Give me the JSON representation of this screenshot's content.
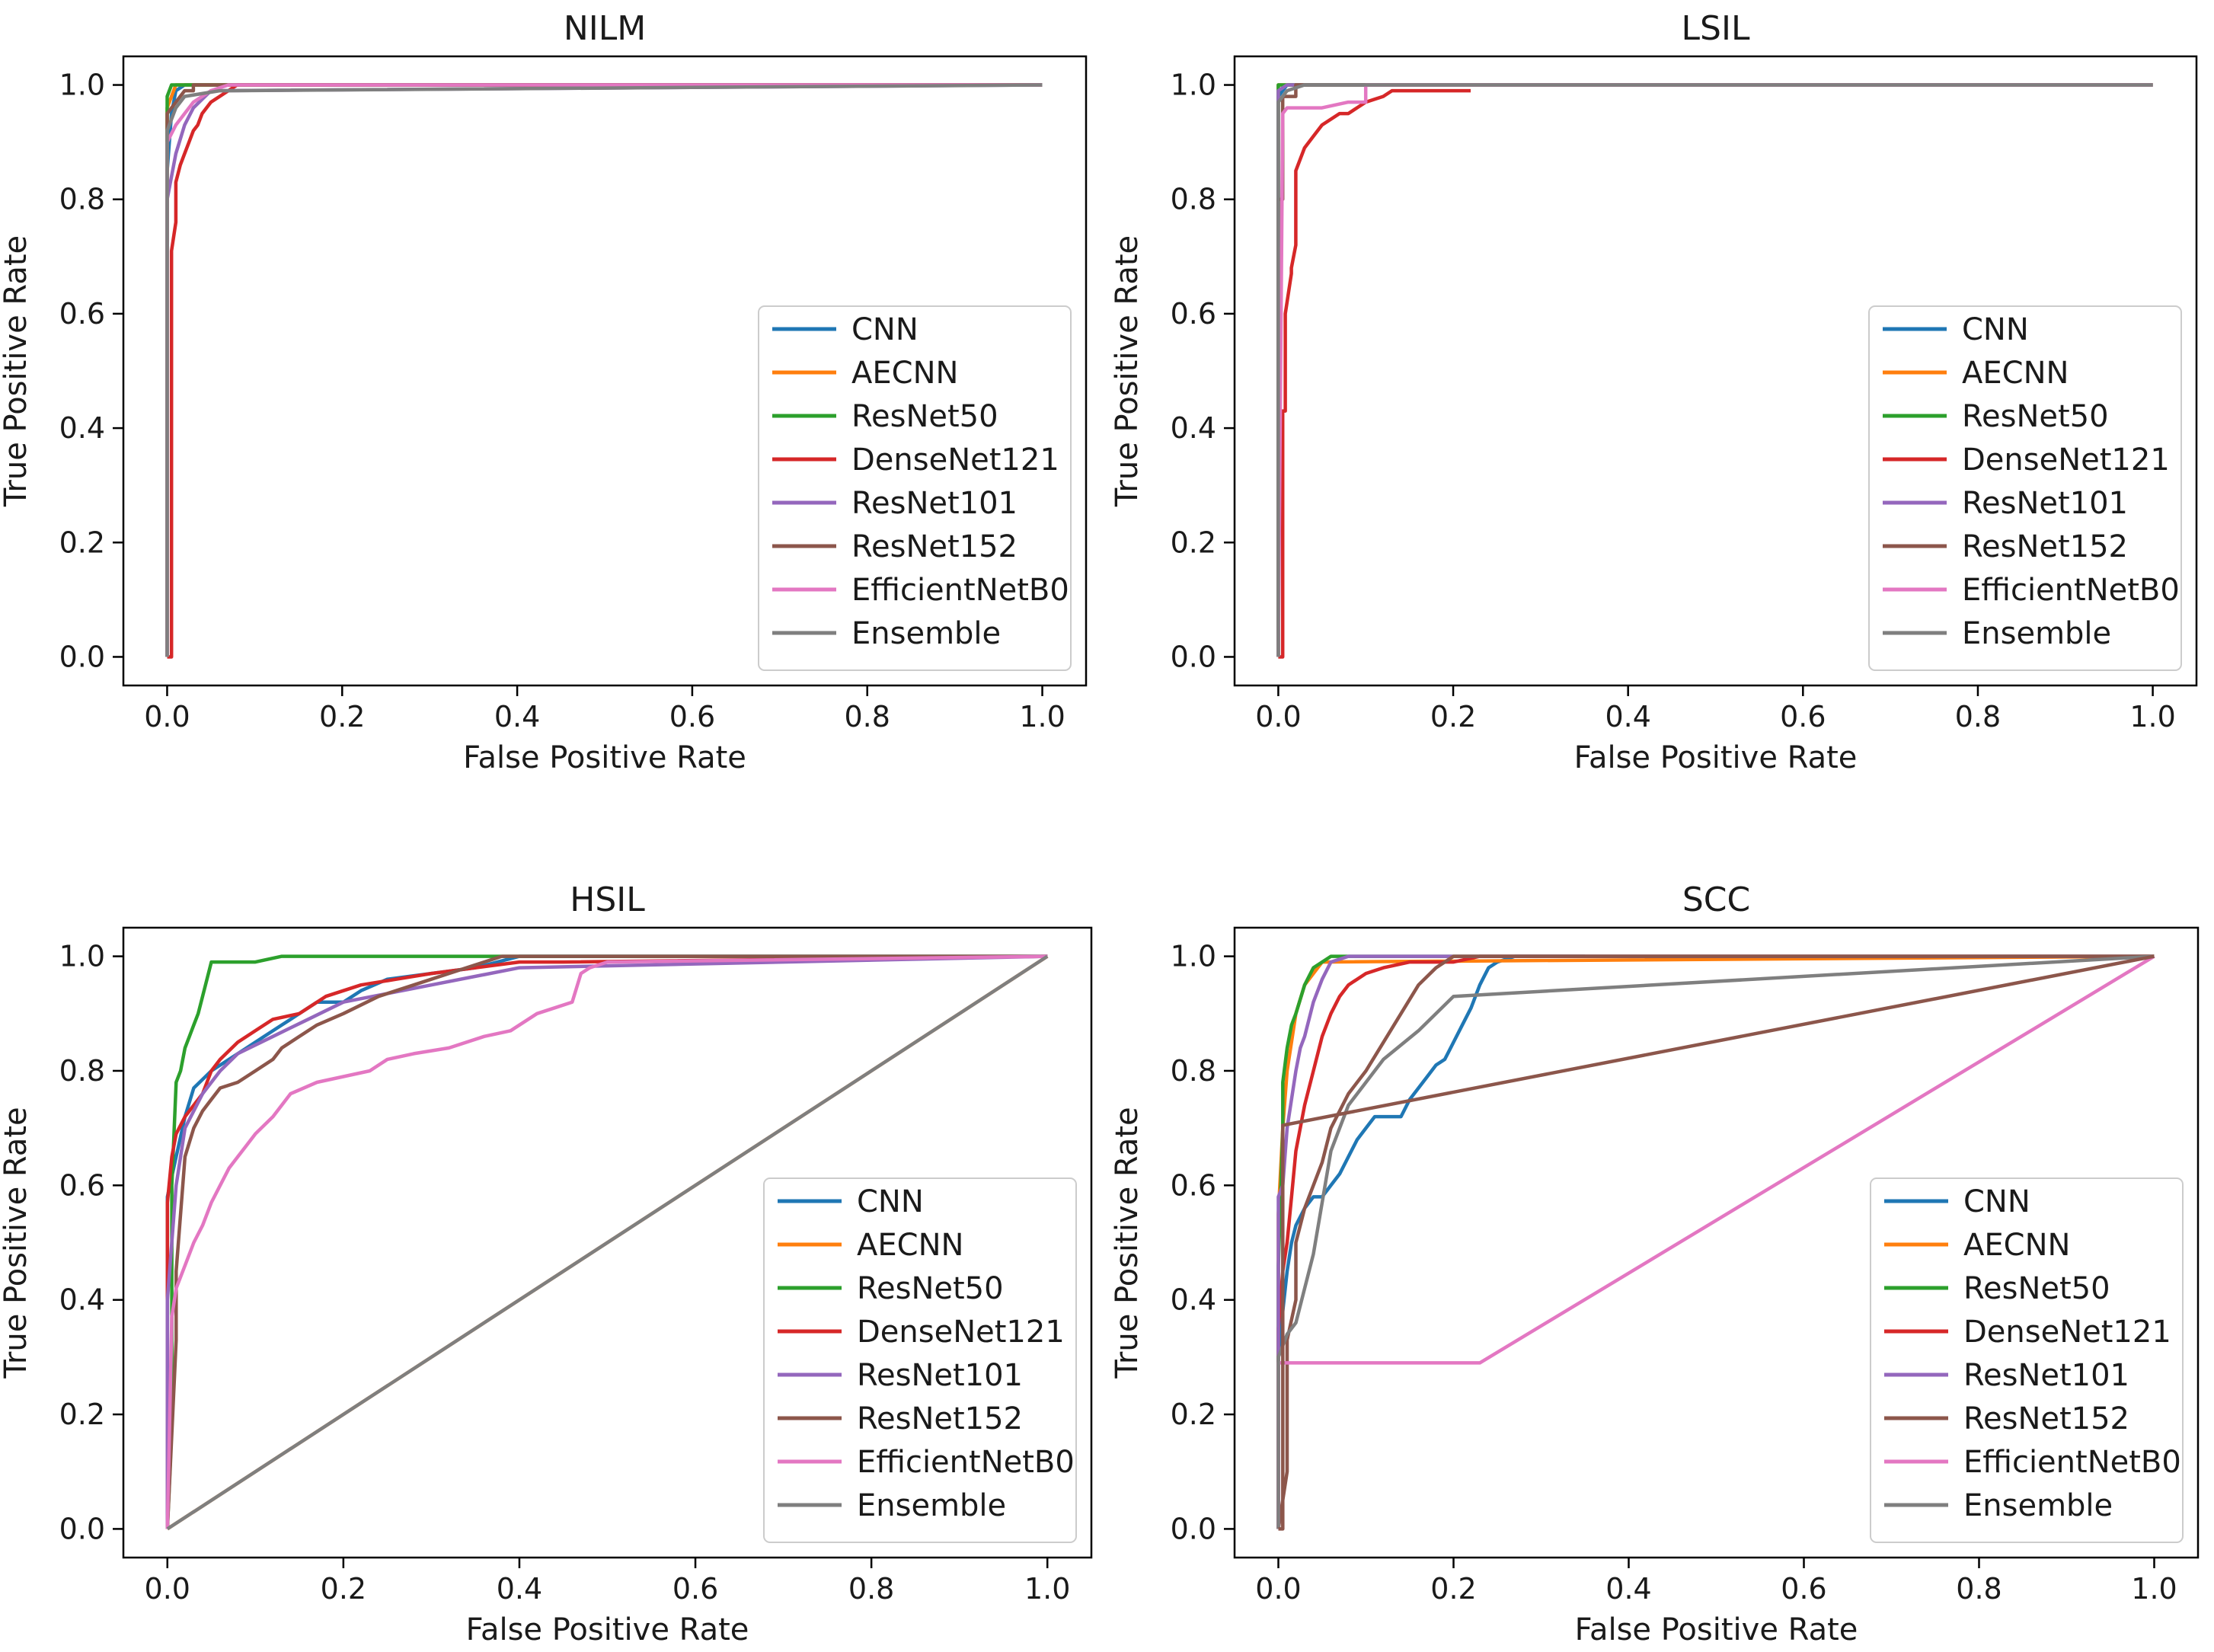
{
  "figure": {
    "type": "roc-grid",
    "rows": 2,
    "cols": 2
  },
  "legend_entries": [
    {
      "name": "CNN",
      "color": "#1f77b4"
    },
    {
      "name": "AECNN",
      "color": "#ff7f0e"
    },
    {
      "name": "ResNet50",
      "color": "#2ca02c"
    },
    {
      "name": "DenseNet121",
      "color": "#d62728"
    },
    {
      "name": "ResNet101",
      "color": "#9467bd"
    },
    {
      "name": "ResNet152",
      "color": "#8c564b"
    },
    {
      "name": "EfficientNetB0",
      "color": "#e377c2"
    },
    {
      "name": "Ensemble",
      "color": "#7f7f7f"
    }
  ],
  "chart_data": [
    {
      "type": "line",
      "title": "NILM",
      "xlabel": "False Positive Rate",
      "ylabel": "True Positive Rate",
      "xlim": [
        -0.05,
        1.05
      ],
      "ylim": [
        -0.05,
        1.05
      ],
      "xticks": [
        "0.0",
        "0.2",
        "0.4",
        "0.6",
        "0.8",
        "1.0"
      ],
      "yticks": [
        "0.0",
        "0.2",
        "0.4",
        "0.6",
        "0.8",
        "1.0"
      ],
      "legend_position": "lower right",
      "series": [
        {
          "name": "CNN",
          "x": [
            0,
            0,
            0.005,
            0.01,
            0.02,
            1
          ],
          "y": [
            0,
            0.85,
            0.95,
            0.99,
            1.0,
            1.0
          ]
        },
        {
          "name": "AECNN",
          "x": [
            0,
            0,
            0.01,
            1
          ],
          "y": [
            0,
            0.96,
            1.0,
            1.0
          ]
        },
        {
          "name": "ResNet50",
          "x": [
            0,
            0,
            0.005,
            1
          ],
          "y": [
            0,
            0.98,
            1.0,
            1.0
          ]
        },
        {
          "name": "DenseNet121",
          "x": [
            0,
            0.005,
            0.005,
            0.01,
            0.01,
            0.015,
            0.02,
            0.025,
            0.03,
            0.035,
            0.04,
            0.05,
            0.06,
            0.08,
            1
          ],
          "y": [
            0,
            0,
            0.71,
            0.76,
            0.83,
            0.86,
            0.88,
            0.9,
            0.92,
            0.93,
            0.95,
            0.97,
            0.98,
            1.0,
            1.0
          ]
        },
        {
          "name": "ResNet101",
          "x": [
            0,
            0,
            0.01,
            0.02,
            0.03,
            0.05,
            1
          ],
          "y": [
            0,
            0.8,
            0.88,
            0.93,
            0.96,
            0.99,
            1.0
          ]
        },
        {
          "name": "ResNet152",
          "x": [
            0,
            0,
            0.01,
            0.02,
            0.03,
            0.03,
            1
          ],
          "y": [
            0,
            0.95,
            0.97,
            0.99,
            0.99,
            1.0,
            1.0
          ]
        },
        {
          "name": "EfficientNetB0",
          "x": [
            0,
            0,
            0.01,
            0.02,
            0.03,
            0.04,
            0.05,
            0.07,
            1
          ],
          "y": [
            0,
            0.9,
            0.93,
            0.95,
            0.97,
            0.98,
            0.99,
            1.0,
            1.0
          ]
        },
        {
          "name": "Ensemble",
          "x": [
            0,
            0,
            0.01,
            0.02,
            0.06,
            0.07,
            1
          ],
          "y": [
            0,
            0.92,
            0.96,
            0.98,
            0.99,
            0.99,
            1.0
          ]
        }
      ]
    },
    {
      "type": "line",
      "title": "LSIL",
      "xlabel": "False Positive Rate",
      "ylabel": "True Positive Rate",
      "xlim": [
        -0.05,
        1.05
      ],
      "ylim": [
        -0.05,
        1.05
      ],
      "xticks": [
        "0.0",
        "0.2",
        "0.4",
        "0.6",
        "0.8",
        "1.0"
      ],
      "yticks": [
        "0.0",
        "0.2",
        "0.4",
        "0.6",
        "0.8",
        "1.0"
      ],
      "legend_position": "lower right",
      "series": [
        {
          "name": "CNN",
          "x": [
            0,
            0,
            0.01,
            1
          ],
          "y": [
            0,
            0.98,
            1.0,
            1.0
          ]
        },
        {
          "name": "AECNN",
          "x": [
            0,
            0,
            1
          ],
          "y": [
            0,
            1.0,
            1.0
          ]
        },
        {
          "name": "ResNet50",
          "x": [
            0,
            0,
            1
          ],
          "y": [
            0,
            1.0,
            1.0
          ]
        },
        {
          "name": "DenseNet121",
          "x": [
            0,
            0.005,
            0.005,
            0.008,
            0.008,
            0.015,
            0.015,
            0.02,
            0.02,
            0.03,
            0.04,
            0.05,
            0.06,
            0.07,
            0.08,
            0.09,
            0.1,
            0.12,
            0.13,
            0.15,
            0.17,
            0.22
          ],
          "y": [
            0,
            0,
            0.43,
            0.43,
            0.6,
            0.67,
            0.68,
            0.72,
            0.85,
            0.89,
            0.91,
            0.93,
            0.94,
            0.95,
            0.95,
            0.96,
            0.97,
            0.98,
            0.99,
            0.99,
            0.99,
            0.99
          ]
        },
        {
          "name": "ResNet101",
          "x": [
            0,
            0,
            0.01,
            1
          ],
          "y": [
            0,
            0.99,
            1.0,
            1.0
          ]
        },
        {
          "name": "ResNet152",
          "x": [
            0,
            0,
            0.005,
            0.005,
            0.02,
            0.02,
            1
          ],
          "y": [
            0,
            0.8,
            0.8,
            0.98,
            0.98,
            1.0,
            1.0
          ]
        },
        {
          "name": "EfficientNetB0",
          "x": [
            0,
            0.005,
            0.01,
            0.02,
            0.05,
            0.08,
            0.1,
            0.1,
            1
          ],
          "y": [
            0,
            0.95,
            0.96,
            0.96,
            0.96,
            0.97,
            0.97,
            1.0,
            1.0
          ]
        },
        {
          "name": "Ensemble",
          "x": [
            0,
            0,
            0.01,
            0.03,
            1
          ],
          "y": [
            0,
            0.97,
            0.99,
            1.0,
            1.0
          ]
        }
      ]
    },
    {
      "type": "line",
      "title": "HSIL",
      "xlabel": "False Positive Rate",
      "ylabel": "True Positive Rate",
      "xlim": [
        -0.05,
        1.05
      ],
      "ylim": [
        -0.05,
        1.05
      ],
      "xticks": [
        "0.0",
        "0.2",
        "0.4",
        "0.6",
        "0.8",
        "1.0"
      ],
      "yticks": [
        "0.0",
        "0.2",
        "0.4",
        "0.6",
        "0.8",
        "1.0"
      ],
      "legend_position": "lower right",
      "series": [
        {
          "name": "CNN",
          "x": [
            0,
            0,
            0.01,
            0.02,
            0.03,
            0.05,
            0.07,
            0.09,
            0.11,
            0.13,
            0.15,
            0.17,
            0.2,
            0.22,
            0.25,
            0.3,
            0.35,
            0.4,
            1
          ],
          "y": [
            0,
            0.58,
            0.65,
            0.72,
            0.77,
            0.8,
            0.82,
            0.84,
            0.86,
            0.88,
            0.9,
            0.92,
            0.92,
            0.94,
            0.96,
            0.97,
            0.98,
            1.0,
            1.0
          ]
        },
        {
          "name": "AECNN",
          "x": [
            0,
            1
          ],
          "y": [
            0,
            1.0
          ]
        },
        {
          "name": "ResNet50",
          "x": [
            0,
            0.005,
            0.005,
            0.01,
            0.015,
            0.02,
            0.025,
            0.03,
            0.035,
            0.04,
            0.05,
            0.09,
            0.1,
            0.13,
            0.2,
            0.3,
            0.5,
            1
          ],
          "y": [
            0,
            0.18,
            0.6,
            0.78,
            0.8,
            0.84,
            0.86,
            0.88,
            0.9,
            0.93,
            0.99,
            0.99,
            0.99,
            1.0,
            1.0,
            1.0,
            1.0,
            1.0
          ]
        },
        {
          "name": "DenseNet121",
          "x": [
            0,
            0,
            0.005,
            0.01,
            0.02,
            0.03,
            0.04,
            0.05,
            0.06,
            0.08,
            0.1,
            0.12,
            0.15,
            0.18,
            0.22,
            0.26,
            0.3,
            0.35,
            0.4,
            0.45,
            1
          ],
          "y": [
            0,
            0.57,
            0.65,
            0.69,
            0.72,
            0.74,
            0.76,
            0.8,
            0.82,
            0.85,
            0.87,
            0.89,
            0.9,
            0.93,
            0.95,
            0.96,
            0.97,
            0.98,
            0.99,
            0.99,
            1.0
          ]
        },
        {
          "name": "ResNet101",
          "x": [
            0,
            0,
            0.01,
            0.02,
            0.04,
            0.06,
            0.08,
            0.12,
            0.16,
            0.2,
            0.3,
            0.4,
            1
          ],
          "y": [
            0,
            0.4,
            0.6,
            0.7,
            0.76,
            0.8,
            0.83,
            0.86,
            0.89,
            0.92,
            0.95,
            0.98,
            1.0
          ]
        },
        {
          "name": "ResNet152",
          "x": [
            0,
            0.01,
            0.01,
            0.02,
            0.03,
            0.04,
            0.05,
            0.06,
            0.08,
            0.1,
            0.12,
            0.13,
            0.15,
            0.17,
            0.2,
            0.24,
            0.28,
            0.32,
            0.36,
            0.38,
            1
          ],
          "y": [
            0,
            0.33,
            0.45,
            0.65,
            0.7,
            0.73,
            0.75,
            0.77,
            0.78,
            0.8,
            0.82,
            0.84,
            0.86,
            0.88,
            0.9,
            0.93,
            0.95,
            0.97,
            0.99,
            1.0,
            1.0
          ]
        },
        {
          "name": "EfficientNetB0",
          "x": [
            0,
            0.005,
            0.01,
            0.015,
            0.02,
            0.03,
            0.04,
            0.05,
            0.06,
            0.07,
            0.08,
            0.09,
            0.1,
            0.12,
            0.14,
            0.17,
            0.2,
            0.23,
            0.25,
            0.28,
            0.32,
            0.36,
            0.39,
            0.42,
            0.44,
            0.46,
            0.47,
            0.48,
            0.5,
            1
          ],
          "y": [
            0,
            0.37,
            0.42,
            0.44,
            0.46,
            0.5,
            0.53,
            0.57,
            0.6,
            0.63,
            0.65,
            0.67,
            0.69,
            0.72,
            0.76,
            0.78,
            0.79,
            0.8,
            0.82,
            0.83,
            0.84,
            0.86,
            0.87,
            0.9,
            0.91,
            0.92,
            0.97,
            0.98,
            0.99,
            1.0
          ]
        },
        {
          "name": "Ensemble",
          "x": [
            0,
            1
          ],
          "y": [
            0,
            1.0
          ]
        }
      ]
    },
    {
      "type": "line",
      "title": "SCC",
      "xlabel": "False Positive Rate",
      "ylabel": "True Positive Rate",
      "xlim": [
        -0.05,
        1.05
      ],
      "ylim": [
        -0.05,
        1.05
      ],
      "xticks": [
        "0.0",
        "0.2",
        "0.4",
        "0.6",
        "0.8",
        "1.0"
      ],
      "yticks": [
        "0.0",
        "0.2",
        "0.4",
        "0.6",
        "0.8",
        "1.0"
      ],
      "legend_position": "lower right",
      "series": [
        {
          "name": "CNN",
          "x": [
            0,
            0,
            0.005,
            0.01,
            0.015,
            0.02,
            0.03,
            0.04,
            0.05,
            0.06,
            0.07,
            0.08,
            0.09,
            0.1,
            0.11,
            0.12,
            0.14,
            0.15,
            0.16,
            0.17,
            0.18,
            0.19,
            0.2,
            0.21,
            0.22,
            0.23,
            0.24,
            0.25,
            0.27,
            0.3,
            0.35
          ],
          "y": [
            0,
            0.3,
            0.38,
            0.45,
            0.5,
            0.53,
            0.56,
            0.58,
            0.58,
            0.6,
            0.62,
            0.65,
            0.68,
            0.7,
            0.72,
            0.72,
            0.72,
            0.75,
            0.77,
            0.79,
            0.81,
            0.82,
            0.85,
            0.88,
            0.91,
            0.95,
            0.98,
            0.99,
            1.0,
            1.0,
            1.0
          ]
        },
        {
          "name": "AECNN",
          "x": [
            0,
            0,
            0.005,
            0.01,
            0.02,
            0.03,
            0.05,
            1
          ],
          "y": [
            0,
            0.55,
            0.7,
            0.8,
            0.9,
            0.95,
            0.99,
            1.0
          ]
        },
        {
          "name": "ResNet50",
          "x": [
            0,
            0,
            0.005,
            0.005,
            0.01,
            0.015,
            0.02,
            0.03,
            0.04,
            0.05,
            0.06,
            0.08,
            1
          ],
          "y": [
            0,
            0.46,
            0.7,
            0.78,
            0.84,
            0.88,
            0.9,
            0.95,
            0.98,
            0.99,
            1.0,
            1.0,
            1.0
          ]
        },
        {
          "name": "DenseNet121",
          "x": [
            0,
            0,
            0.005,
            0.01,
            0.015,
            0.02,
            0.03,
            0.04,
            0.05,
            0.06,
            0.07,
            0.08,
            0.1,
            0.12,
            0.15,
            0.2,
            0.23,
            1
          ],
          "y": [
            0,
            0.35,
            0.45,
            0.5,
            0.58,
            0.66,
            0.74,
            0.8,
            0.86,
            0.9,
            0.93,
            0.95,
            0.97,
            0.98,
            0.99,
            0.99,
            1.0,
            1.0
          ]
        },
        {
          "name": "ResNet101",
          "x": [
            0,
            0,
            0.005,
            0.01,
            0.02,
            0.025,
            0.03,
            0.04,
            0.05,
            0.06,
            0.08,
            0.1,
            1
          ],
          "y": [
            0,
            0.58,
            0.6,
            0.7,
            0.8,
            0.84,
            0.86,
            0.92,
            0.96,
            0.99,
            1.0,
            1.0,
            1.0
          ]
        },
        {
          "name": "ResNet152",
          "x": [
            0,
            0.01,
            0.01,
            0.02,
            0.02,
            0.03,
            0.05,
            0.06,
            0.08,
            0.1,
            0.12,
            0.14,
            0.16,
            0.18,
            0.2,
            1
          ],
          "y": [
            0,
            0.1,
            0.33,
            0.4,
            0.5,
            0.56,
            0.64,
            0.7,
            0.76,
            0.8,
            0.85,
            0.9,
            0.95,
            0.98,
            1.0,
            1.0
          ]
        },
        {
          "name": "EfficientNetB0",
          "x": [
            0,
            0,
            0.23,
            1
          ],
          "y": [
            0,
            0.29,
            0.29,
            1.0
          ]
        },
        {
          "name": "Ensemble",
          "x": [
            0,
            0,
            0.01,
            0.02,
            0.04,
            0.06,
            0.08,
            0.12,
            0.16,
            0.2,
            1
          ],
          "y": [
            0,
            0.3,
            0.34,
            0.36,
            0.48,
            0.66,
            0.74,
            0.82,
            0.87,
            0.93,
            1.0
          ]
        },
        {
          "name": "ResNet152",
          "x": [
            0,
            0.005,
            0.005,
            1
          ],
          "y": [
            0,
            0,
            0.705,
            1.0
          ],
          "note": "second curve drawn in ResNet152 color with straight chord"
        }
      ]
    }
  ]
}
